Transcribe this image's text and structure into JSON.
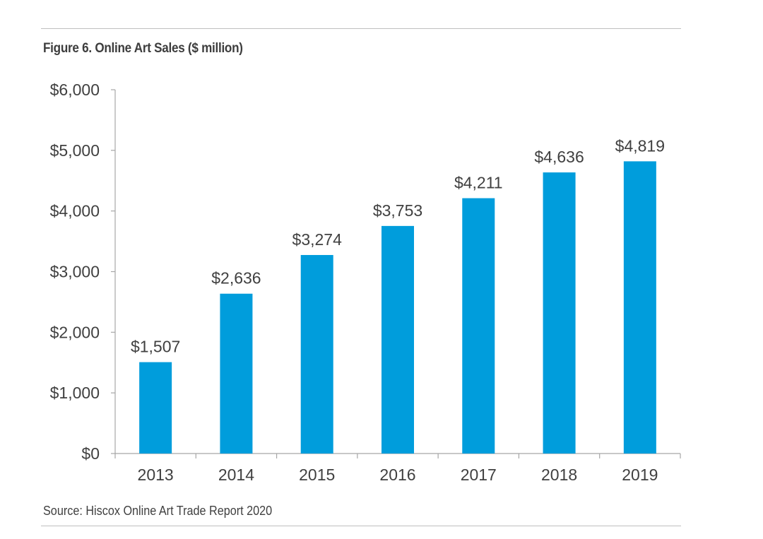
{
  "figure": {
    "title": "Figure 6. Online Art Sales ($ million)",
    "source": "Source: Hiscox Online Art Trade Report 2020"
  },
  "chart_data": {
    "type": "bar",
    "title": "Figure 6. Online Art Sales ($ million)",
    "categories": [
      "2013",
      "2014",
      "2015",
      "2016",
      "2017",
      "2018",
      "2019"
    ],
    "values": [
      1507,
      2636,
      3274,
      3753,
      4211,
      4636,
      4819
    ],
    "data_labels": [
      "$1,507",
      "$2,636",
      "$3,274",
      "$3,753",
      "$4,211",
      "$4,636",
      "$4,819"
    ],
    "y_ticks": [
      0,
      1000,
      2000,
      3000,
      4000,
      5000,
      6000
    ],
    "y_tick_labels": [
      "$0",
      "$1,000",
      "$2,000",
      "$3,000",
      "$4,000",
      "$5,000",
      "$6,000"
    ],
    "ylim": [
      0,
      6000
    ],
    "xlabel": "",
    "ylabel": "",
    "grid": false,
    "legend": "none",
    "bar_color": "#009ddc",
    "axis_color": "#a6a6a6",
    "label_color": "#404040"
  }
}
